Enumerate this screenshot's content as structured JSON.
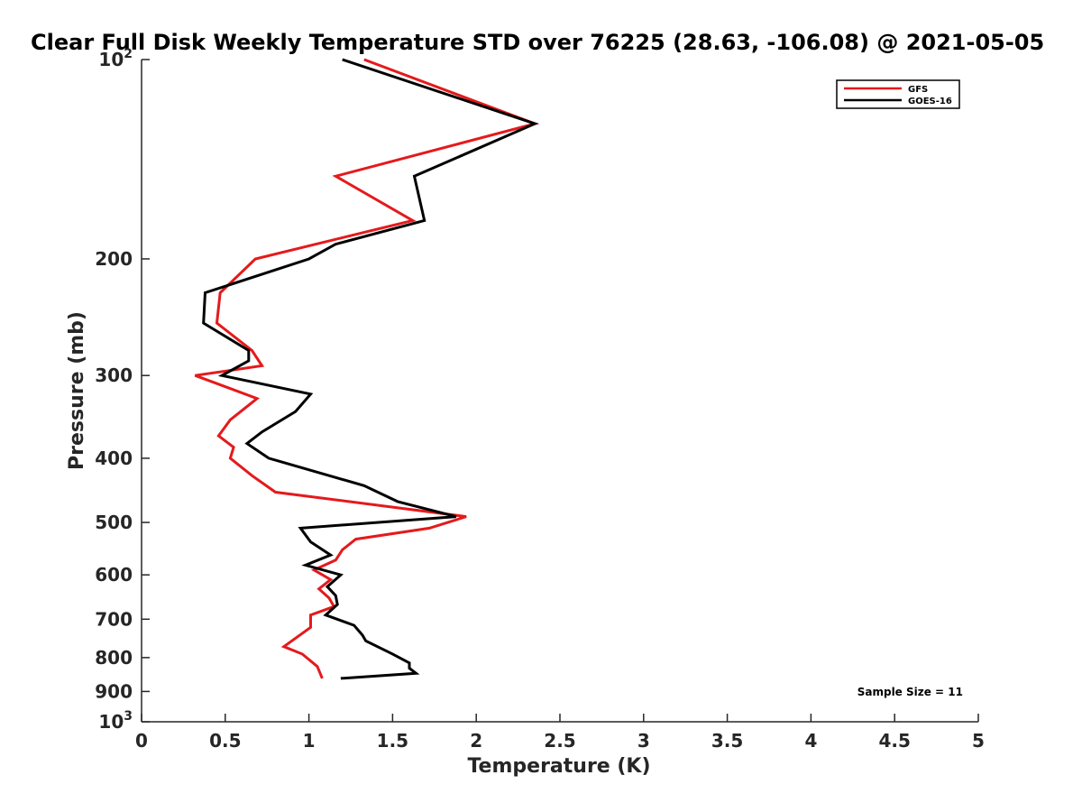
{
  "chart_data": {
    "type": "line",
    "title": "Clear Full Disk Weekly Temperature STD over 76225 (28.63, -106.08) @ 2021-05-05",
    "xlabel": "Temperature (K)",
    "ylabel": "Pressure (mb)",
    "xlim": [
      0,
      5
    ],
    "ylim": [
      100,
      1000
    ],
    "y_scale": "log",
    "y_reversed": true,
    "x_ticks": [
      "0",
      "0.5",
      "1",
      "1.5",
      "2",
      "2.5",
      "3",
      "3.5",
      "4",
      "4.5",
      "5"
    ],
    "x_tick_values": [
      0,
      0.5,
      1,
      1.5,
      2,
      2.5,
      3,
      3.5,
      4,
      4.5,
      5
    ],
    "y_ticks": [
      {
        "value": 100,
        "base": "10",
        "exp": "2"
      },
      {
        "value": 200,
        "label": "200"
      },
      {
        "value": 300,
        "label": "300"
      },
      {
        "value": 400,
        "label": "400"
      },
      {
        "value": 500,
        "label": "500"
      },
      {
        "value": 600,
        "label": "600"
      },
      {
        "value": 700,
        "label": "700"
      },
      {
        "value": 800,
        "label": "800"
      },
      {
        "value": 900,
        "label": "900"
      },
      {
        "value": 1000,
        "base": "10",
        "exp": "3"
      }
    ],
    "grid": false,
    "legend_position": "top-right",
    "series": [
      {
        "name": "GFS",
        "color": "#e41a1c",
        "points": [
          {
            "x": 1.33,
            "y": 100
          },
          {
            "x": 2.35,
            "y": 125
          },
          {
            "x": 1.16,
            "y": 150
          },
          {
            "x": 1.62,
            "y": 175
          },
          {
            "x": 0.68,
            "y": 200
          },
          {
            "x": 0.47,
            "y": 225
          },
          {
            "x": 0.45,
            "y": 250
          },
          {
            "x": 0.66,
            "y": 275
          },
          {
            "x": 0.72,
            "y": 290
          },
          {
            "x": 0.32,
            "y": 300
          },
          {
            "x": 0.69,
            "y": 325
          },
          {
            "x": 0.53,
            "y": 350
          },
          {
            "x": 0.46,
            "y": 370
          },
          {
            "x": 0.55,
            "y": 385
          },
          {
            "x": 0.53,
            "y": 400
          },
          {
            "x": 0.66,
            "y": 425
          },
          {
            "x": 0.8,
            "y": 450
          },
          {
            "x": 1.94,
            "y": 490
          },
          {
            "x": 1.72,
            "y": 510
          },
          {
            "x": 1.28,
            "y": 530
          },
          {
            "x": 1.2,
            "y": 550
          },
          {
            "x": 1.16,
            "y": 570
          },
          {
            "x": 1.03,
            "y": 590
          },
          {
            "x": 1.13,
            "y": 610
          },
          {
            "x": 1.06,
            "y": 630
          },
          {
            "x": 1.12,
            "y": 650
          },
          {
            "x": 1.15,
            "y": 670
          },
          {
            "x": 1.01,
            "y": 690
          },
          {
            "x": 1.01,
            "y": 720
          },
          {
            "x": 0.85,
            "y": 770
          },
          {
            "x": 0.96,
            "y": 790
          },
          {
            "x": 1.05,
            "y": 825
          },
          {
            "x": 1.08,
            "y": 860
          }
        ]
      },
      {
        "name": "GOES-16",
        "color": "#000000",
        "points": [
          {
            "x": 1.2,
            "y": 100
          },
          {
            "x": 2.35,
            "y": 125
          },
          {
            "x": 1.63,
            "y": 150
          },
          {
            "x": 1.69,
            "y": 175
          },
          {
            "x": 1.16,
            "y": 190
          },
          {
            "x": 1.0,
            "y": 200
          },
          {
            "x": 0.38,
            "y": 225
          },
          {
            "x": 0.37,
            "y": 250
          },
          {
            "x": 0.64,
            "y": 275
          },
          {
            "x": 0.64,
            "y": 285
          },
          {
            "x": 0.48,
            "y": 300
          },
          {
            "x": 1.01,
            "y": 320
          },
          {
            "x": 0.92,
            "y": 340
          },
          {
            "x": 0.72,
            "y": 365
          },
          {
            "x": 0.63,
            "y": 380
          },
          {
            "x": 0.76,
            "y": 400
          },
          {
            "x": 1.33,
            "y": 440
          },
          {
            "x": 1.53,
            "y": 465
          },
          {
            "x": 1.88,
            "y": 490
          },
          {
            "x": 0.95,
            "y": 510
          },
          {
            "x": 1.01,
            "y": 535
          },
          {
            "x": 1.13,
            "y": 560
          },
          {
            "x": 0.98,
            "y": 580
          },
          {
            "x": 1.19,
            "y": 600
          },
          {
            "x": 1.11,
            "y": 625
          },
          {
            "x": 1.16,
            "y": 645
          },
          {
            "x": 1.17,
            "y": 665
          },
          {
            "x": 1.1,
            "y": 690
          },
          {
            "x": 1.27,
            "y": 715
          },
          {
            "x": 1.32,
            "y": 740
          },
          {
            "x": 1.34,
            "y": 755
          },
          {
            "x": 1.5,
            "y": 790
          },
          {
            "x": 1.6,
            "y": 815
          },
          {
            "x": 1.6,
            "y": 830
          },
          {
            "x": 1.64,
            "y": 845
          },
          {
            "x": 1.19,
            "y": 860
          }
        ]
      }
    ],
    "annotation": "Sample Size = 11"
  }
}
